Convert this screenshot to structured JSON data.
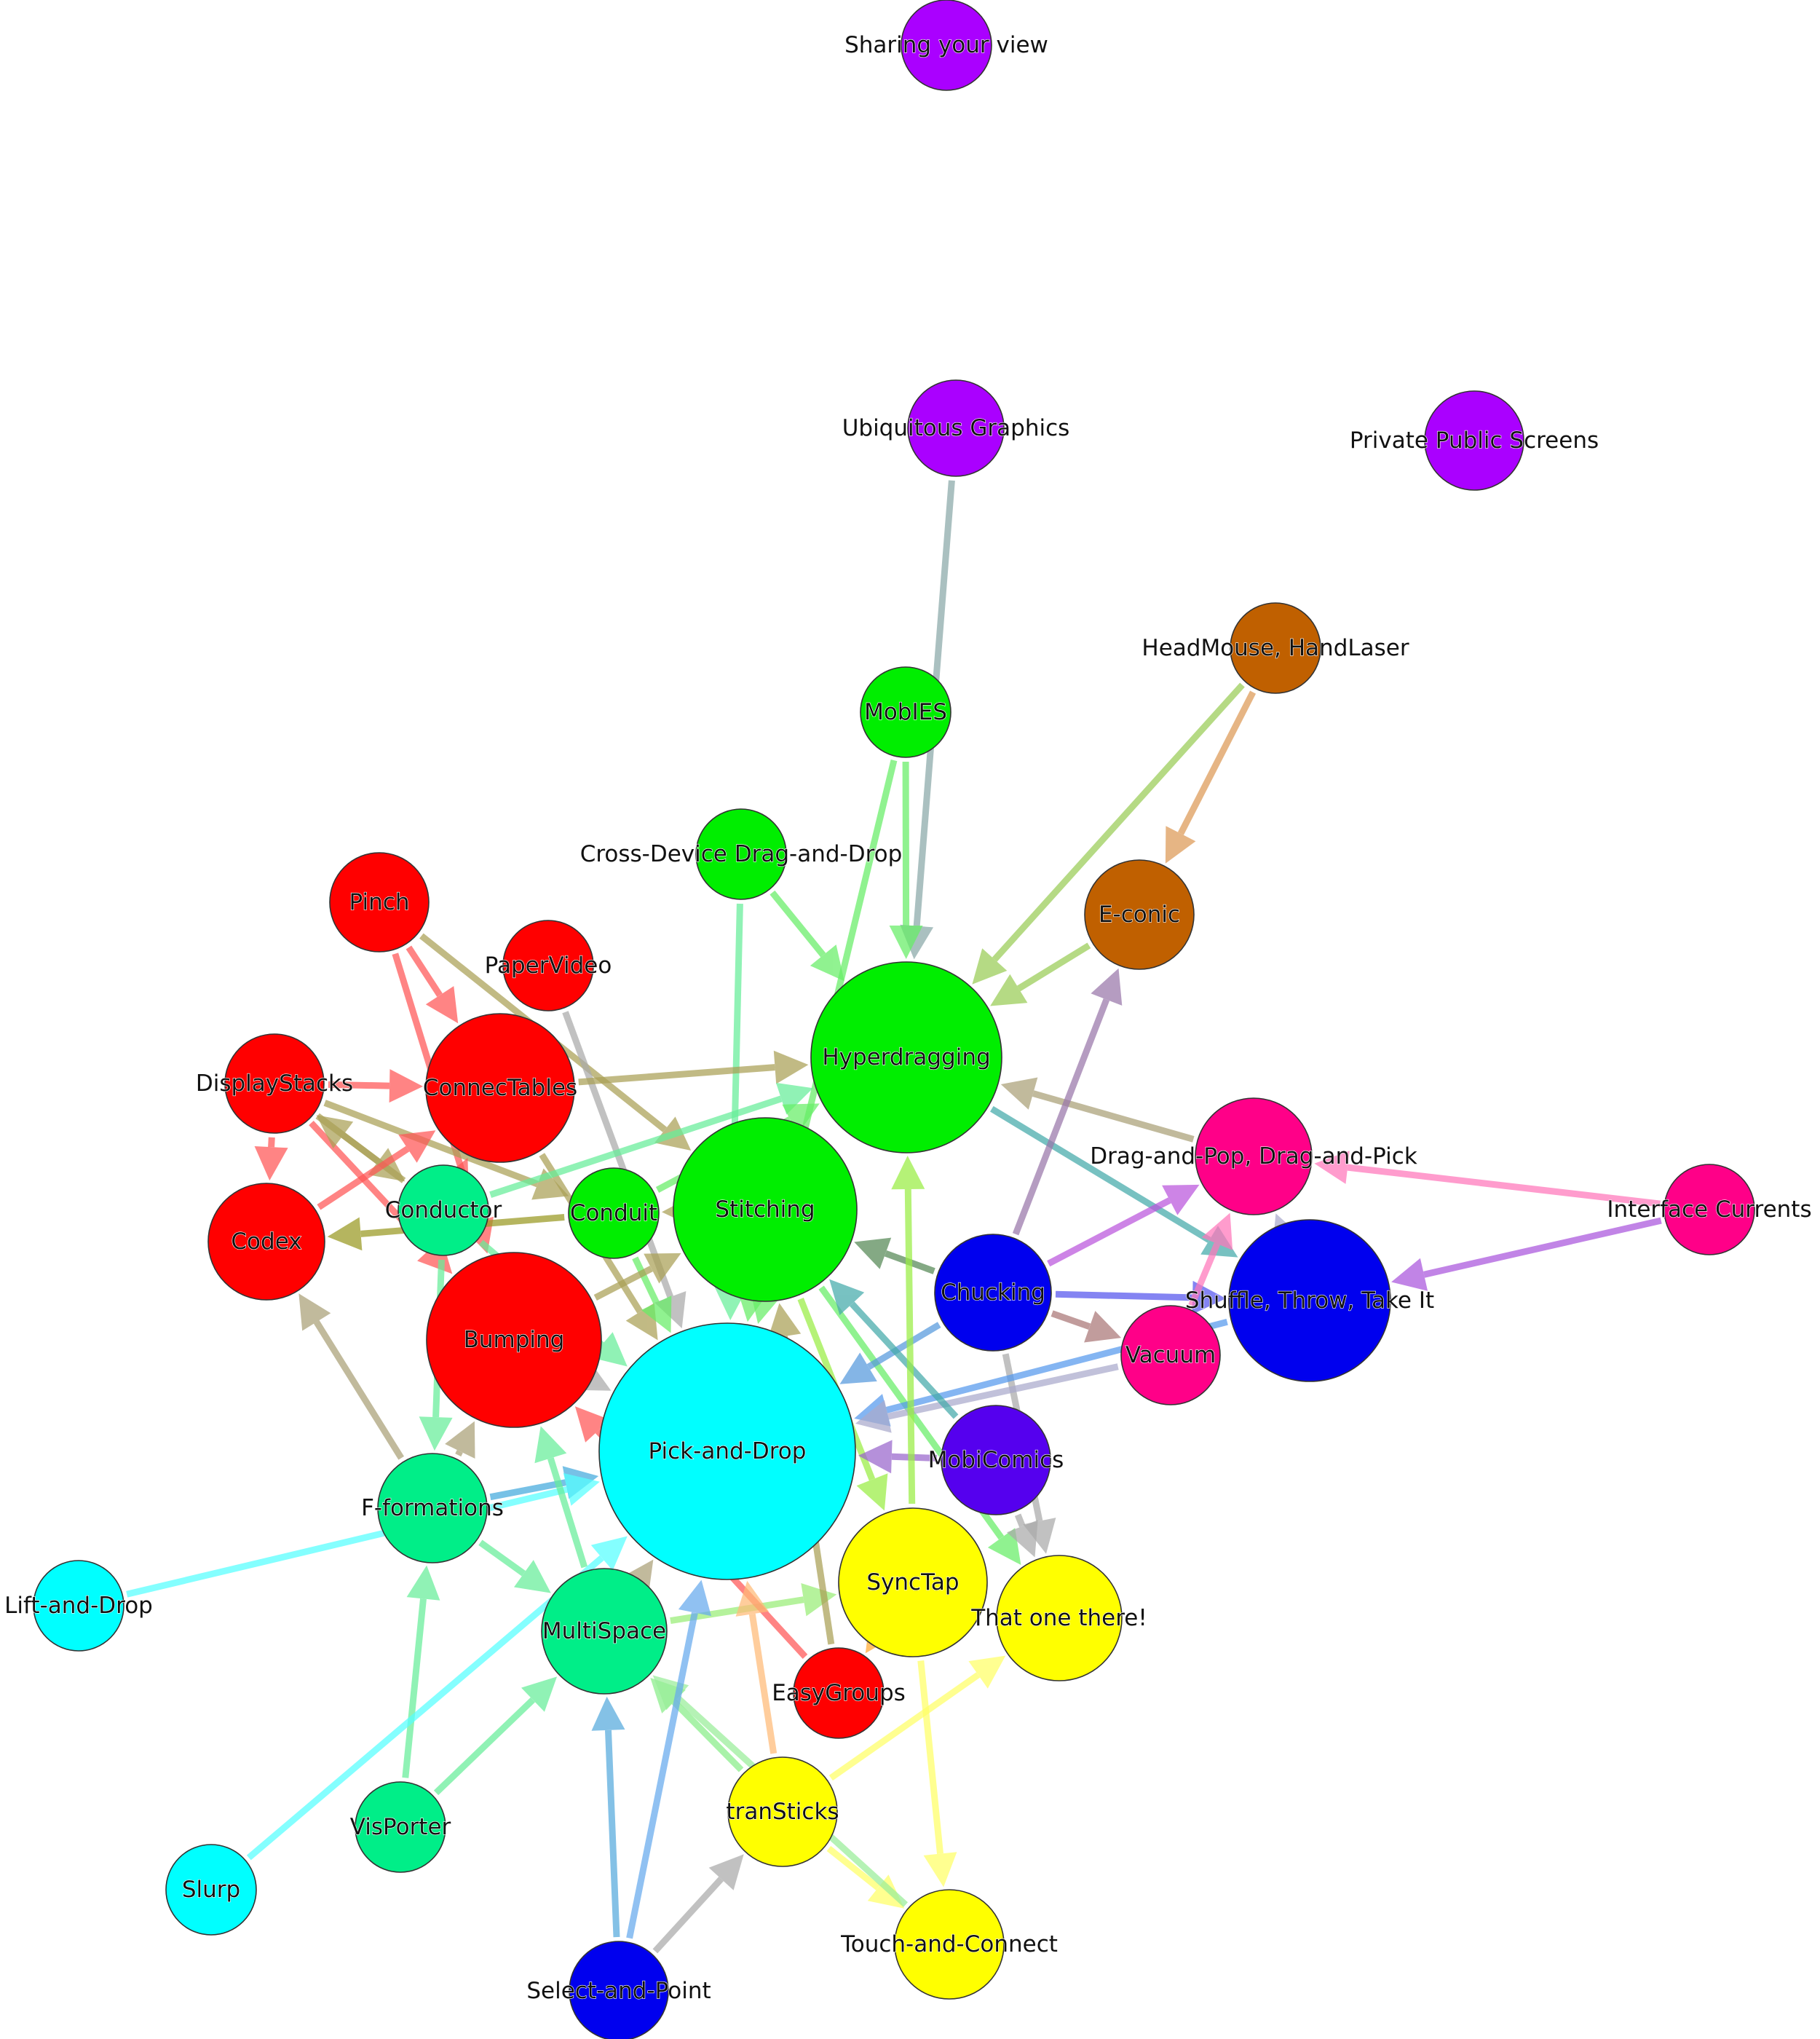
{
  "nodes": [
    {
      "id": "sharing",
      "label": "Sharing your view",
      "color": "#aa00ff"
    },
    {
      "id": "ubiq",
      "label": "Ubiquitous Graphics",
      "color": "#aa00ff"
    },
    {
      "id": "pps",
      "label": "Private Public Screens",
      "color": "#aa00ff"
    },
    {
      "id": "headmouse",
      "label": "HeadMouse, HandLaser",
      "color": "#c06000"
    },
    {
      "id": "mobies",
      "label": "MobIES",
      "color": "#00ee00"
    },
    {
      "id": "cddd",
      "label": "Cross-Device Drag-and-Drop",
      "color": "#00ee00"
    },
    {
      "id": "econic",
      "label": "E-conic",
      "color": "#c06000"
    },
    {
      "id": "pinch",
      "label": "Pinch",
      "color": "#ff0000"
    },
    {
      "id": "papervideo",
      "label": "PaperVideo",
      "color": "#ff0000"
    },
    {
      "id": "hyperdragging",
      "label": "Hyperdragging",
      "color": "#00ee00"
    },
    {
      "id": "displaystacks",
      "label": "DisplayStacks",
      "color": "#ff0000"
    },
    {
      "id": "connectables",
      "label": "ConnecTables",
      "color": "#ff0000"
    },
    {
      "id": "dragpop",
      "label": "Drag-and-Pop, Drag-and-Pick",
      "color": "#ff0088"
    },
    {
      "id": "ifcurrents",
      "label": "Interface Currents",
      "color": "#ff0088"
    },
    {
      "id": "conductor",
      "label": "Conductor",
      "color": "#00ee88"
    },
    {
      "id": "conduit",
      "label": "Conduit",
      "color": "#00ee00"
    },
    {
      "id": "stitching",
      "label": "Stitching",
      "color": "#00ee00"
    },
    {
      "id": "codex",
      "label": "Codex",
      "color": "#ff0000"
    },
    {
      "id": "chucking",
      "label": "Chucking",
      "color": "#0000ee"
    },
    {
      "id": "shuffle",
      "label": "Shuffle, Throw, Take It",
      "color": "#0000ee"
    },
    {
      "id": "bumping",
      "label": "Bumping",
      "color": "#ff0000"
    },
    {
      "id": "vacuum",
      "label": "Vacuum",
      "color": "#ff0088"
    },
    {
      "id": "pickdrop",
      "label": "Pick-and-Drop",
      "color": "#00ffff"
    },
    {
      "id": "mobicomics",
      "label": "MobiComics",
      "color": "#5500ee"
    },
    {
      "id": "fformations",
      "label": "F-formations",
      "color": "#00ee88"
    },
    {
      "id": "synctap",
      "label": "SyncTap",
      "color": "#ffff00"
    },
    {
      "id": "liftdrop",
      "label": "Lift-and-Drop",
      "color": "#00ffff"
    },
    {
      "id": "thatone",
      "label": "That one there!",
      "color": "#ffff00"
    },
    {
      "id": "multispace",
      "label": "MultiSpace",
      "color": "#00ee88"
    },
    {
      "id": "easygroups",
      "label": "EasyGroups",
      "color": "#ff0000"
    },
    {
      "id": "transticks",
      "label": "tranSticks",
      "color": "#ffff00"
    },
    {
      "id": "visporter",
      "label": "VisPorter",
      "color": "#00ee88"
    },
    {
      "id": "slurp",
      "label": "Slurp",
      "color": "#00ffff"
    },
    {
      "id": "touchconnect",
      "label": "Touch-and-Connect",
      "color": "#ffff00"
    },
    {
      "id": "selectpoint",
      "label": "Select-and-Point",
      "color": "#0000ee"
    }
  ],
  "edges": [
    {
      "from": "ubiq",
      "to": "hyperdragging",
      "color": "#8aa9a9"
    },
    {
      "from": "mobies",
      "to": "hyperdragging",
      "color": "#66ee66"
    },
    {
      "from": "mobies",
      "to": "pickdrop",
      "color": "#66ee66"
    },
    {
      "from": "headmouse",
      "to": "econic",
      "color": "#dd9955"
    },
    {
      "from": "headmouse",
      "to": "hyperdragging",
      "color": "#99cc55"
    },
    {
      "from": "econic",
      "to": "hyperdragging",
      "color": "#99cc55"
    },
    {
      "from": "cddd",
      "to": "hyperdragging",
      "color": "#66ee66"
    },
    {
      "from": "cddd",
      "to": "pickdrop",
      "color": "#66ee99"
    },
    {
      "from": "pinch",
      "to": "connectables",
      "color": "#ff5555"
    },
    {
      "from": "pinch",
      "to": "stitching",
      "color": "#aaa055"
    },
    {
      "from": "pinch",
      "to": "bumping",
      "color": "#ff5555"
    },
    {
      "from": "papervideo",
      "to": "pickdrop",
      "color": "#aaaaaa"
    },
    {
      "from": "displaystacks",
      "to": "connectables",
      "color": "#ff5555"
    },
    {
      "from": "displaystacks",
      "to": "codex",
      "color": "#ff5555"
    },
    {
      "from": "displaystacks",
      "to": "conductor",
      "color": "#aaa055"
    },
    {
      "from": "displaystacks",
      "to": "conduit",
      "color": "#aaa055"
    },
    {
      "from": "displaystacks",
      "to": "bumping",
      "color": "#ff5555"
    },
    {
      "from": "connectables",
      "to": "hyperdragging",
      "color": "#aaa055"
    },
    {
      "from": "connectables",
      "to": "pickdrop",
      "color": "#aaa055"
    },
    {
      "from": "conductor",
      "to": "connectables",
      "color": "#ff5555"
    },
    {
      "from": "conductor",
      "to": "displaystacks",
      "color": "#aaa055"
    },
    {
      "from": "conductor",
      "to": "hyperdragging",
      "color": "#66ee99"
    },
    {
      "from": "conductor",
      "to": "fformations",
      "color": "#66ee99"
    },
    {
      "from": "conductor",
      "to": "pickdrop",
      "color": "#66ee99"
    },
    {
      "from": "codex",
      "to": "connectables",
      "color": "#ff5555"
    },
    {
      "from": "conduit",
      "to": "codex",
      "color": "#999922"
    },
    {
      "from": "conduit",
      "to": "hyperdragging",
      "color": "#66ee66"
    },
    {
      "from": "conduit",
      "to": "pickdrop",
      "color": "#66ee66"
    },
    {
      "from": "stitching",
      "to": "conduit",
      "color": "#aaa055"
    },
    {
      "from": "stitching",
      "to": "pickdrop",
      "color": "#66ee66"
    },
    {
      "from": "stitching",
      "to": "synctap",
      "color": "#99ee44"
    },
    {
      "from": "stitching",
      "to": "thatone",
      "color": "#66ee66"
    },
    {
      "from": "dragpop",
      "to": "hyperdragging",
      "color": "#aaa077"
    },
    {
      "from": "hyperdragging",
      "to": "shuffle",
      "color": "#44aaaa"
    },
    {
      "from": "ifcurrents",
      "to": "dragpop",
      "color": "#ff77bb"
    },
    {
      "from": "ifcurrents",
      "to": "shuffle",
      "color": "#aa55dd"
    },
    {
      "from": "chucking",
      "to": "econic",
      "color": "#9977aa"
    },
    {
      "from": "chucking",
      "to": "dragpop",
      "color": "#bb55dd"
    },
    {
      "from": "chucking",
      "to": "stitching",
      "color": "#558855"
    },
    {
      "from": "chucking",
      "to": "shuffle",
      "color": "#5555ee"
    },
    {
      "from": "chucking",
      "to": "vacuum",
      "color": "#aa7777"
    },
    {
      "from": "chucking",
      "to": "pickdrop",
      "color": "#5599dd"
    },
    {
      "from": "chucking",
      "to": "thatone",
      "color": "#aaaaaa"
    },
    {
      "from": "vacuum",
      "to": "dragpop",
      "color": "#ff77bb"
    },
    {
      "from": "shuffle",
      "to": "pickdrop",
      "color": "#5599ee"
    },
    {
      "from": "vacuum",
      "to": "pickdrop",
      "color": "#aaaacc"
    },
    {
      "from": "shuffle",
      "to": "dragpop",
      "color": "#aaaacc"
    },
    {
      "from": "mobicomics",
      "to": "pickdrop",
      "color": "#9966cc"
    },
    {
      "from": "mobicomics",
      "to": "stitching",
      "color": "#44aaaa"
    },
    {
      "from": "mobicomics",
      "to": "thatone",
      "color": "#aaaaaa"
    },
    {
      "from": "bumping",
      "to": "stitching",
      "color": "#aaa055"
    },
    {
      "from": "bumping",
      "to": "pickdrop",
      "color": "#aaaaaa"
    },
    {
      "from": "fformations",
      "to": "codex",
      "color": "#aaa077"
    },
    {
      "from": "fformations",
      "to": "bumping",
      "color": "#aaa077"
    },
    {
      "from": "fformations",
      "to": "pickdrop",
      "color": "#44aadd"
    },
    {
      "from": "fformations",
      "to": "multispace",
      "color": "#66ee99"
    },
    {
      "from": "liftdrop",
      "to": "pickdrop",
      "color": "#55ffff"
    },
    {
      "from": "multispace",
      "to": "pickdrop",
      "color": "#aaa077"
    },
    {
      "from": "multispace",
      "to": "synctap",
      "color": "#99ee77"
    },
    {
      "from": "multispace",
      "to": "bumping",
      "color": "#66ee99"
    },
    {
      "from": "easygroups",
      "to": "bumping",
      "color": "#ff5555"
    },
    {
      "from": "easygroups",
      "to": "stitching",
      "color": "#aaa055"
    },
    {
      "from": "synctap",
      "to": "hyperdragging",
      "color": "#99ee44"
    },
    {
      "from": "synctap",
      "to": "touchconnect",
      "color": "#ffff66"
    },
    {
      "from": "synctap",
      "to": "easygroups",
      "color": "#ffaa33"
    },
    {
      "from": "transticks",
      "to": "pickdrop",
      "color": "#ffbb77"
    },
    {
      "from": "transticks",
      "to": "thatone",
      "color": "#ffff66"
    },
    {
      "from": "transticks",
      "to": "touchconnect",
      "color": "#ffff66"
    },
    {
      "from": "transticks",
      "to": "multispace",
      "color": "#88ee88"
    },
    {
      "from": "touchconnect",
      "to": "multispace",
      "color": "#99ee99"
    },
    {
      "from": "visporter",
      "to": "fformations",
      "color": "#66ee99"
    },
    {
      "from": "visporter",
      "to": "multispace",
      "color": "#66ee99"
    },
    {
      "from": "slurp",
      "to": "pickdrop",
      "color": "#55ffff"
    },
    {
      "from": "selectpoint",
      "to": "multispace",
      "color": "#55aadd"
    },
    {
      "from": "selectpoint",
      "to": "pickdrop",
      "color": "#66aaee"
    },
    {
      "from": "selectpoint",
      "to": "transticks",
      "color": "#aaaaaa"
    }
  ]
}
